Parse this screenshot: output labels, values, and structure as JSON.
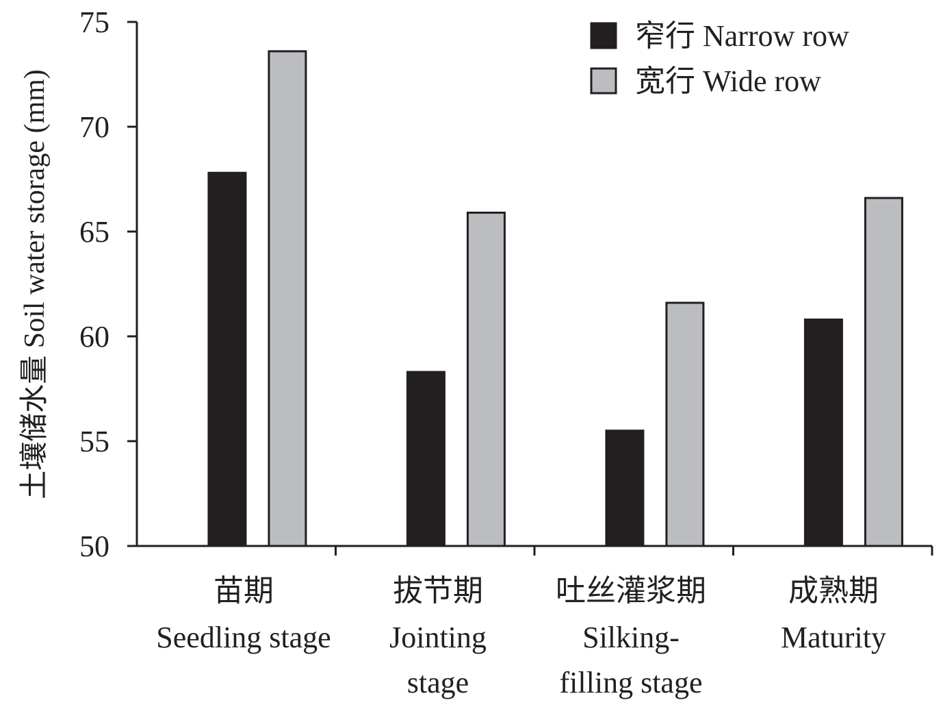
{
  "chart_data": {
    "type": "bar",
    "ylabel": "土壤储水量 Soil water storage (mm)",
    "xlabel": "",
    "ylim": [
      50,
      75
    ],
    "yticks": [
      50,
      55,
      60,
      65,
      70,
      75
    ],
    "grid": false,
    "legend_position": "top-right",
    "categories": [
      {
        "zh": "苗期",
        "en": [
          "Seedling stage"
        ]
      },
      {
        "zh": "拔节期",
        "en": [
          "Jointing",
          "stage"
        ]
      },
      {
        "zh": "吐丝灌浆期",
        "en": [
          "Silking-",
          "filling stage"
        ]
      },
      {
        "zh": "成熟期",
        "en": [
          "Maturity"
        ]
      }
    ],
    "series": [
      {
        "name": "窄行 Narrow row",
        "color": "#231f20",
        "values": [
          67.8,
          58.3,
          55.5,
          60.8
        ]
      },
      {
        "name": "宽行 Wide row",
        "color": "#bcbdc0",
        "values": [
          73.6,
          65.9,
          61.6,
          66.6
        ]
      }
    ]
  }
}
